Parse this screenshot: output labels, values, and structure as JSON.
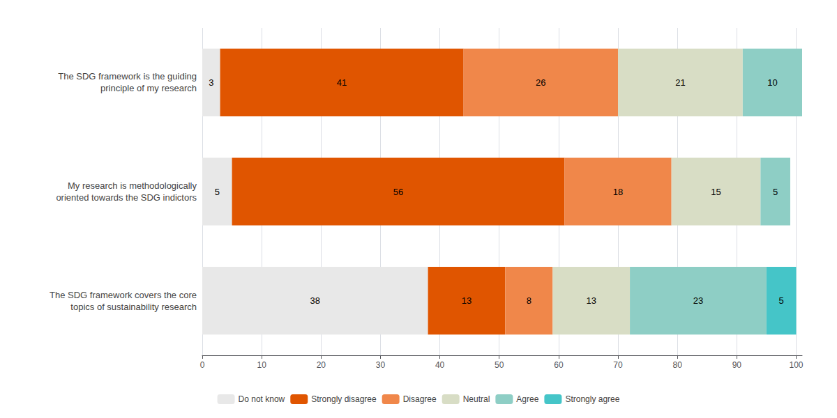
{
  "chart_data": {
    "type": "bar",
    "orientation": "horizontal",
    "stacked": true,
    "data_labels": true,
    "grid": true,
    "legend": "bottom",
    "categories": [
      "The SDG framework covers the core\ntopics of sustainability research",
      "My research is methodologically\noriented towards the SDG indictors",
      "The SDG framework is the guiding\nprinciple of my research"
    ],
    "series": [
      {
        "name": "Do not know",
        "color": "#e8e8e8",
        "values": [
          38,
          5,
          3
        ]
      },
      {
        "name": "Strongly disagree",
        "color": "#e05500",
        "values": [
          13,
          56,
          41
        ]
      },
      {
        "name": "Disagree",
        "color": "#f0874a",
        "values": [
          8,
          18,
          26
        ]
      },
      {
        "name": "Neutral",
        "color": "#d8ddc5",
        "values": [
          13,
          15,
          21
        ]
      },
      {
        "name": "Agree",
        "color": "#8ecec5",
        "values": [
          23,
          5,
          10
        ]
      },
      {
        "name": "Strongly agree",
        "color": "#45c5c8",
        "values": [
          5,
          0,
          0
        ]
      }
    ],
    "xlim": [
      0,
      101
    ],
    "xticks": [
      0,
      10,
      20,
      30,
      40,
      50,
      60,
      70,
      80,
      90,
      100
    ]
  }
}
